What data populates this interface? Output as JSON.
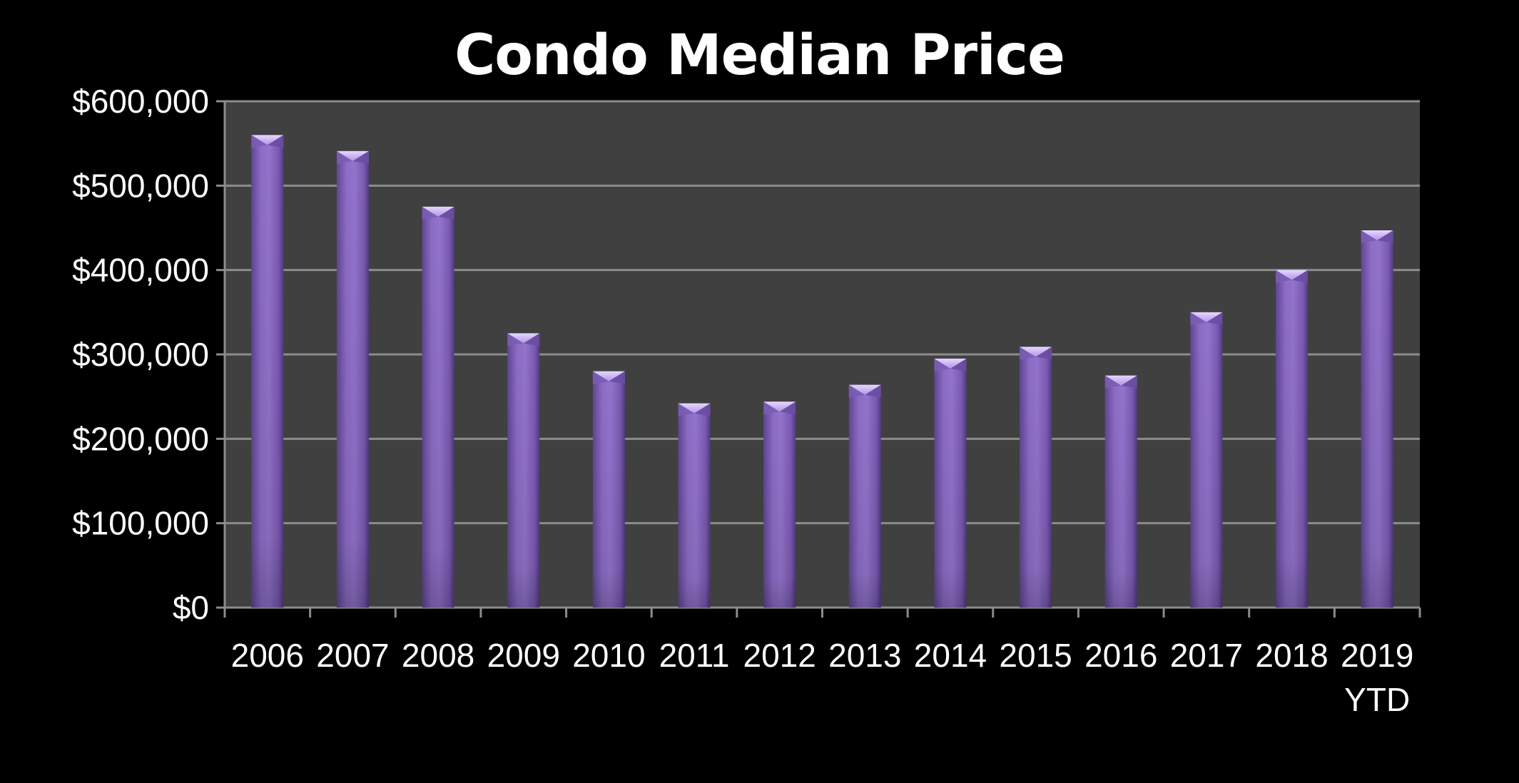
{
  "chart_data": {
    "type": "bar",
    "title": "Condo Median Price",
    "xlabel": "",
    "ylabel": "",
    "categories": [
      "2006",
      "2007",
      "2008",
      "2009",
      "2010",
      "2011",
      "2012",
      "2013",
      "2014",
      "2015",
      "2016",
      "2017",
      "2018",
      "2019\nYTD"
    ],
    "values": [
      560000,
      541000,
      475000,
      325000,
      280000,
      242000,
      244000,
      264000,
      295000,
      309000,
      275000,
      350000,
      400000,
      447000
    ],
    "ylim": [
      0,
      600000
    ],
    "yticks": [
      "$0",
      "$100,000",
      "$200,000",
      "$300,000",
      "$400,000",
      "$500,000",
      "$600,000"
    ],
    "grid": true,
    "legend": "none",
    "colors": {
      "background": "#000000",
      "plot_area": "#404040",
      "bar": "#8a68c2",
      "bar_top": "#c9b2f0",
      "gridline": "#8c8c8c",
      "text": "#ffffff"
    }
  }
}
